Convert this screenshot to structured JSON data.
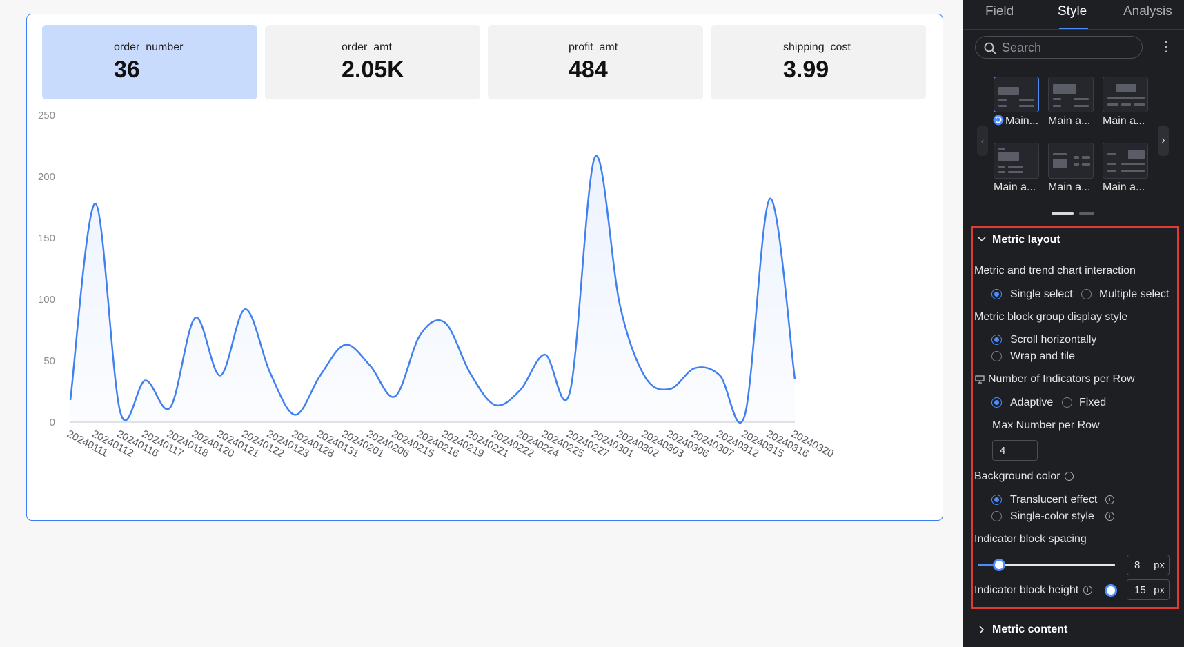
{
  "metrics": [
    {
      "name": "order_number",
      "value": "36"
    },
    {
      "name": "order_amt",
      "value": "2.05K"
    },
    {
      "name": "profit_amt",
      "value": "484"
    },
    {
      "name": "shipping_cost",
      "value": "3.99"
    }
  ],
  "chart_data": {
    "type": "area",
    "title": "",
    "xlabel": "",
    "ylabel": "",
    "ylim": [
      0,
      250
    ],
    "yticks": [
      "250",
      "200",
      "150",
      "100",
      "50",
      "0"
    ],
    "x": [
      "20240111",
      "20240112",
      "20240116",
      "20240117",
      "20240118",
      "20240120",
      "20240121",
      "20240122",
      "20240123",
      "20240128",
      "20240131",
      "20240201",
      "20240206",
      "20240215",
      "20240216",
      "20240219",
      "20240221",
      "20240222",
      "20240224",
      "20240225",
      "20240227",
      "20240301",
      "20240302",
      "20240303",
      "20240306",
      "20240307",
      "20240312",
      "20240315",
      "20240316",
      "20240320"
    ],
    "series": [
      {
        "values": [
          18,
          178,
          8,
          34,
          12,
          85,
          38,
          92,
          40,
          6,
          38,
          63,
          46,
          21,
          71,
          81,
          40,
          14,
          26,
          55,
          25,
          216,
          95,
          37,
          27,
          44,
          38,
          6,
          182,
          35
        ]
      }
    ],
    "grid": false,
    "legend": "none",
    "line_color": "#4080f0"
  },
  "panel": {
    "tabs": [
      "Field",
      "Style",
      "Analysis"
    ],
    "active_tab": "Style",
    "search_placeholder": "Search",
    "thumbnails": [
      "Main...",
      "Main a...",
      "Main a...",
      "Main a...",
      "Main a...",
      "Main a..."
    ],
    "metric_layout": {
      "title": "Metric layout",
      "interaction_label": "Metric and trend chart interaction",
      "interaction_options": [
        "Single select",
        "Multiple select"
      ],
      "group_style_label": "Metric block group display style",
      "group_style_options": [
        "Scroll horizontally",
        "Wrap and tile"
      ],
      "per_row_label": "Number of Indicators per Row",
      "per_row_options": [
        "Adaptive",
        "Fixed"
      ],
      "max_per_row_label": "Max Number per Row",
      "max_per_row_value": "4",
      "bg_label": "Background color",
      "bg_options": [
        "Translucent effect",
        "Single-color style"
      ],
      "spacing_label": "Indicator block spacing",
      "spacing_value": "8",
      "height_label": "Indicator block height",
      "height_value": "15",
      "unit": "px"
    },
    "metric_content_title": "Metric content"
  },
  "colors": {
    "accent": "#4d8cff",
    "highlight_border": "#e03a32",
    "active_card": "#c8dbfd"
  }
}
